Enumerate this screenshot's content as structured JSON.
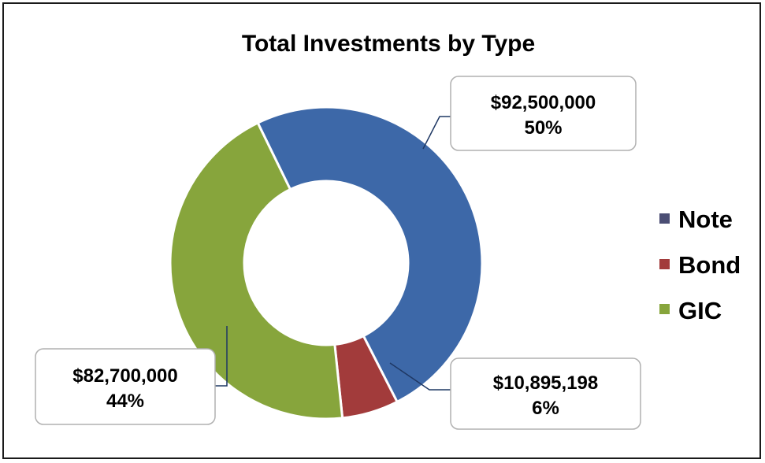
{
  "chart_data": {
    "type": "pie",
    "variant": "donut",
    "title": "Total Investments by Type",
    "categories": [
      "Note",
      "Bond",
      "GIC"
    ],
    "values": [
      92500000,
      10895198,
      82700000
    ],
    "value_labels": [
      "$92,500,000",
      "$10,895,198",
      "$82,700,000"
    ],
    "percent_labels": [
      "50%",
      "6%",
      "44%"
    ],
    "colors": [
      "#3D68A8",
      "#A23B3B",
      "#87A53C"
    ],
    "legend": {
      "placement": "right",
      "items": [
        "Note",
        "Bond",
        "GIC"
      ]
    }
  }
}
